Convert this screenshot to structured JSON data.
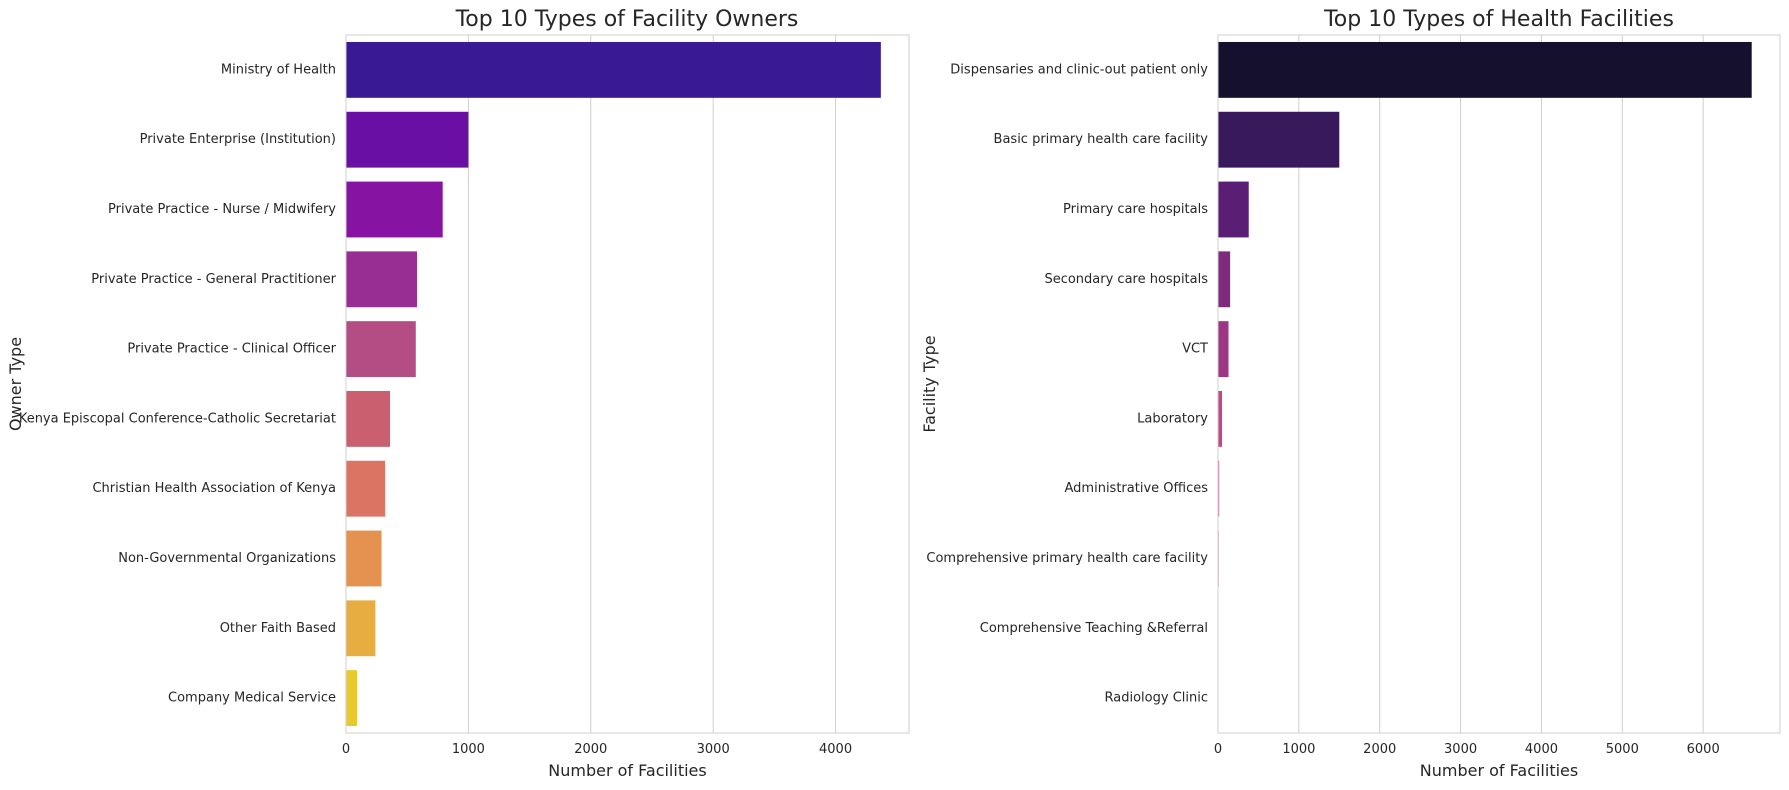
{
  "chart_data": [
    {
      "type": "bar",
      "orientation": "horizontal",
      "title": "Top 10 Types of Facility Owners",
      "xlabel": "Number of Facilities",
      "ylabel": "Owner Type",
      "categories": [
        "Ministry of Health",
        "Private Enterprise (Institution)",
        "Private Practice - Nurse / Midwifery",
        "Private Practice - General Practitioner",
        "Private Practice - Clinical Officer",
        "Kenya Episcopal Conference-Catholic Secretariat",
        "Christian Health Association of Kenya",
        "Non-Governmental Organizations",
        "Other Faith Based",
        "Company Medical Service"
      ],
      "values": [
        4370,
        1000,
        790,
        580,
        570,
        360,
        320,
        290,
        240,
        90
      ],
      "colors": [
        "#3a1a94",
        "#6a0fa3",
        "#8713a2",
        "#982e94",
        "#b34d83",
        "#c95f6f",
        "#dc7464",
        "#e5914f",
        "#e8ad40",
        "#e9c92e"
      ],
      "xlim": [
        0,
        4600
      ],
      "xticks": [
        0,
        1000,
        2000,
        3000,
        4000
      ],
      "grid": true
    },
    {
      "type": "bar",
      "orientation": "horizontal",
      "title": "Top 10 Types of Health Facilities",
      "xlabel": "Number of Facilities",
      "ylabel": "Facility Type",
      "categories": [
        "Dispensaries and clinic-out patient only",
        "Basic primary health care facility",
        "Primary care hospitals",
        "Secondary care hospitals",
        "VCT",
        "Laboratory",
        "Administrative Offices",
        "Comprehensive primary health care facility",
        "Comprehensive Teaching &Referral",
        "Radiology Clinic"
      ],
      "values": [
        6600,
        1500,
        380,
        150,
        130,
        50,
        15,
        10,
        5,
        3
      ],
      "colors": [
        "#14102e",
        "#381a5c",
        "#5a1f74",
        "#7f2a7d",
        "#9f3584",
        "#c4458a",
        "#d96a98",
        "#e08fa6",
        "#e6adb4",
        "#eccbc4"
      ],
      "xlim": [
        0,
        6950
      ],
      "xticks": [
        0,
        1000,
        2000,
        3000,
        4000,
        5000,
        6000
      ],
      "grid": true
    }
  ]
}
